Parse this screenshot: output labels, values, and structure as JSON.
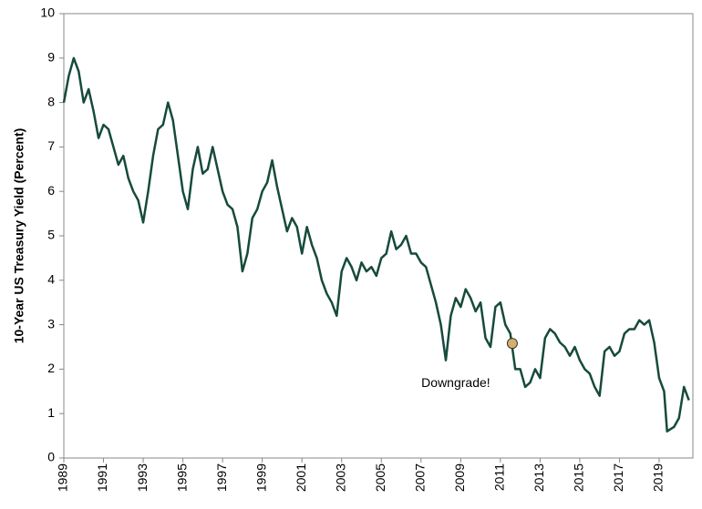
{
  "chart_data": {
    "type": "line",
    "y_label": "10-Year US Treasury Yield (Percent)",
    "xlim": [
      1989,
      2020.7
    ],
    "ylim": [
      0,
      10
    ],
    "xticks": [
      1989,
      1991,
      1993,
      1995,
      1997,
      1999,
      2001,
      2003,
      2005,
      2007,
      2009,
      2011,
      2013,
      2015,
      2017,
      2019
    ],
    "yticks": [
      0,
      1,
      2,
      3,
      4,
      5,
      6,
      7,
      8,
      9,
      10
    ],
    "series": [
      {
        "color": "#164a3c",
        "x": [
          1989.0,
          1989.25,
          1989.5,
          1989.75,
          1990.0,
          1990.25,
          1990.5,
          1990.75,
          1991.0,
          1991.25,
          1991.5,
          1991.75,
          1992.0,
          1992.25,
          1992.5,
          1992.75,
          1993.0,
          1993.25,
          1993.5,
          1993.75,
          1994.0,
          1994.25,
          1994.5,
          1994.75,
          1995.0,
          1995.25,
          1995.5,
          1995.75,
          1996.0,
          1996.25,
          1996.5,
          1996.75,
          1997.0,
          1997.25,
          1997.5,
          1997.75,
          1998.0,
          1998.25,
          1998.5,
          1998.75,
          1999.0,
          1999.25,
          1999.5,
          1999.75,
          2000.0,
          2000.25,
          2000.5,
          2000.75,
          2001.0,
          2001.25,
          2001.5,
          2001.75,
          2002.0,
          2002.25,
          2002.5,
          2002.75,
          2003.0,
          2003.25,
          2003.5,
          2003.75,
          2004.0,
          2004.25,
          2004.5,
          2004.75,
          2005.0,
          2005.25,
          2005.5,
          2005.75,
          2006.0,
          2006.25,
          2006.5,
          2006.75,
          2007.0,
          2007.25,
          2007.5,
          2007.75,
          2008.0,
          2008.25,
          2008.5,
          2008.75,
          2009.0,
          2009.25,
          2009.5,
          2009.75,
          2010.0,
          2010.25,
          2010.5,
          2010.75,
          2011.0,
          2011.25,
          2011.5,
          2011.75,
          2012.0,
          2012.25,
          2012.5,
          2012.75,
          2013.0,
          2013.25,
          2013.5,
          2013.75,
          2014.0,
          2014.25,
          2014.5,
          2014.75,
          2015.0,
          2015.25,
          2015.5,
          2015.75,
          2016.0,
          2016.25,
          2016.5,
          2016.75,
          2017.0,
          2017.25,
          2017.5,
          2017.75,
          2018.0,
          2018.25,
          2018.5,
          2018.75,
          2019.0,
          2019.25,
          2019.4,
          2019.75,
          2020.0,
          2020.25,
          2020.5
        ],
        "values": [
          8.0,
          8.6,
          9.0,
          8.7,
          8.0,
          8.3,
          7.8,
          7.2,
          7.5,
          7.4,
          7.0,
          6.6,
          6.8,
          6.3,
          6.0,
          5.8,
          5.3,
          6.0,
          6.8,
          7.4,
          7.5,
          8.0,
          7.6,
          6.8,
          6.0,
          5.6,
          6.5,
          7.0,
          6.4,
          6.5,
          7.0,
          6.5,
          6.0,
          5.7,
          5.6,
          5.2,
          4.2,
          4.6,
          5.4,
          5.6,
          6.0,
          6.2,
          6.7,
          6.1,
          5.6,
          5.1,
          5.4,
          5.2,
          4.6,
          5.2,
          4.8,
          4.5,
          4.0,
          3.7,
          3.5,
          3.2,
          4.2,
          4.5,
          4.3,
          4.0,
          4.4,
          4.2,
          4.3,
          4.1,
          4.5,
          4.6,
          5.1,
          4.7,
          4.8,
          5.0,
          4.6,
          4.6,
          4.4,
          4.3,
          3.9,
          3.5,
          3.0,
          2.2,
          3.2,
          3.6,
          3.4,
          3.8,
          3.6,
          3.3,
          3.5,
          2.7,
          2.5,
          3.4,
          3.5,
          3.0,
          2.8,
          2.0,
          2.0,
          1.6,
          1.7,
          2.0,
          1.8,
          2.7,
          2.9,
          2.8,
          2.6,
          2.5,
          2.3,
          2.5,
          2.2,
          2.0,
          1.9,
          1.6,
          1.4,
          2.4,
          2.5,
          2.3,
          2.4,
          2.8,
          2.9,
          2.9,
          3.1,
          3.0,
          3.1,
          2.6,
          1.8,
          1.5,
          0.6,
          0.7,
          0.9,
          1.6,
          1.3
        ]
      }
    ],
    "annotation": {
      "x": 2011.6,
      "y": 2.58,
      "label": "Downgrade!",
      "color": "#d4b06b"
    }
  }
}
